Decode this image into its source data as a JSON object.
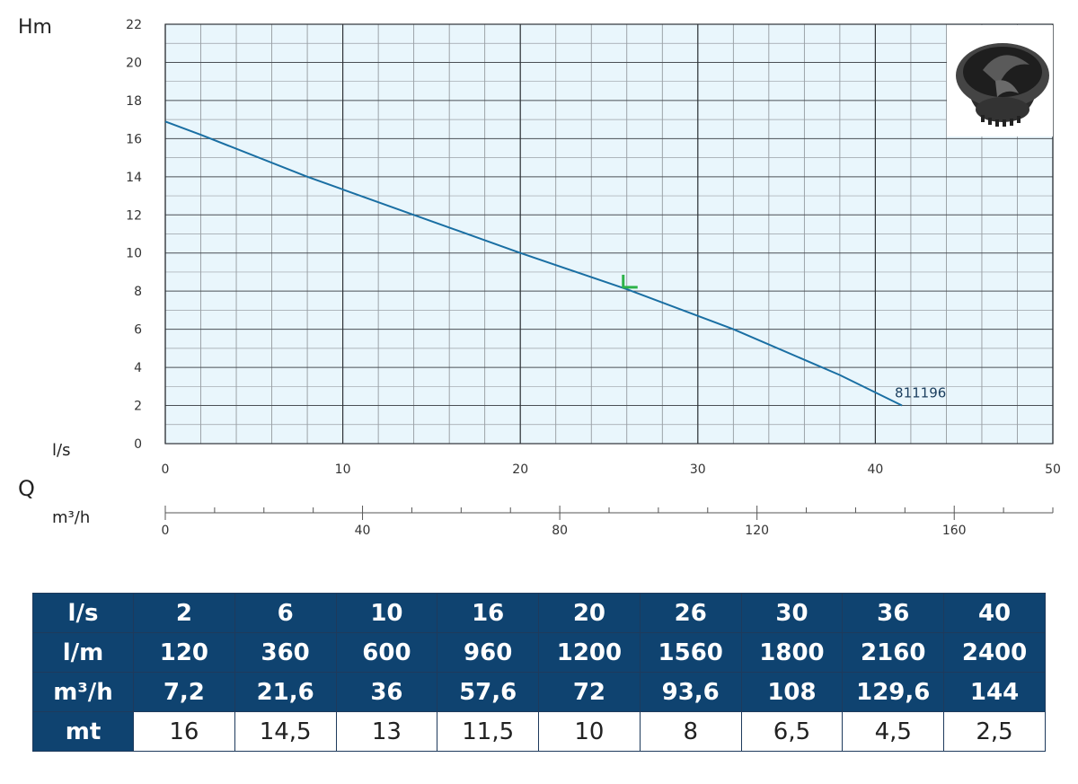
{
  "chart_data": {
    "type": "line",
    "y_axis_label": "Hm",
    "x_axis_label": "Q",
    "x_unit_primary": "l/s",
    "x_unit_secondary": "m³/h",
    "xlim": [
      0,
      50
    ],
    "ylim": [
      0,
      22
    ],
    "x_ticks": [
      "0",
      "10",
      "20",
      "30",
      "40",
      "50"
    ],
    "y_ticks": [
      "0",
      "2",
      "4",
      "6",
      "8",
      "10",
      "12",
      "14",
      "16",
      "18",
      "20",
      "22"
    ],
    "x2_ticks": [
      "0",
      "40",
      "80",
      "120",
      "160"
    ],
    "grid": true,
    "series": [
      {
        "name": "811196",
        "color": "#1a6fa3",
        "x": [
          0,
          2,
          8,
          14,
          20,
          26,
          32,
          38,
          41.5
        ],
        "y": [
          16.9,
          16.2,
          14.0,
          12.0,
          10.0,
          8.1,
          6.0,
          3.6,
          2.0
        ]
      }
    ],
    "marker": {
      "x": 26,
      "y": 8.2,
      "color": "#2db34a"
    }
  },
  "table": {
    "rows": [
      {
        "label": "l/s",
        "values": [
          "2",
          "6",
          "10",
          "16",
          "20",
          "26",
          "30",
          "36",
          "40"
        ]
      },
      {
        "label": "l/m",
        "values": [
          "120",
          "360",
          "600",
          "960",
          "1200",
          "1560",
          "1800",
          "2160",
          "2400"
        ]
      },
      {
        "label": "m³/h",
        "values": [
          "7,2",
          "21,6",
          "36",
          "57,6",
          "72",
          "93,6",
          "108",
          "129,6",
          "144"
        ]
      },
      {
        "label": "mt",
        "values": [
          "16",
          "14,5",
          "13",
          "11,5",
          "10",
          "8",
          "6,5",
          "4,5",
          "2,5"
        ]
      }
    ]
  }
}
